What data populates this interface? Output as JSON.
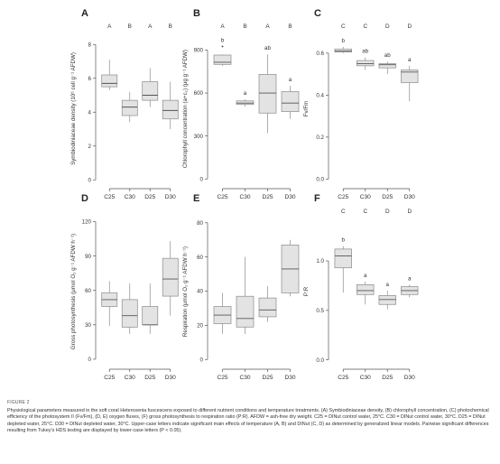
{
  "chart_data": [
    {
      "panel": "A",
      "type": "box",
      "ylabel": "Symbiodiniaceae density (10⁶ cell g⁻¹ AFDW)",
      "ylim": [
        -0.2,
        8.6
      ],
      "yticks": [
        0,
        2,
        4,
        6,
        8
      ],
      "categories": [
        "C25",
        "C30",
        "D25",
        "D30"
      ],
      "letters_upper": [
        "A",
        "B",
        "A",
        "B"
      ],
      "letters_lower": [
        "",
        "",
        "",
        ""
      ],
      "boxes": [
        {
          "min": 5.3,
          "q1": 5.5,
          "median": 5.7,
          "q3": 6.2,
          "max": 7.1
        },
        {
          "min": 3.4,
          "q1": 3.8,
          "median": 4.3,
          "q3": 4.7,
          "max": 5.2
        },
        {
          "min": 4.3,
          "q1": 4.7,
          "median": 5.0,
          "q3": 5.8,
          "max": 6.6
        },
        {
          "min": 3.0,
          "q1": 3.6,
          "median": 4.1,
          "q3": 4.7,
          "max": 5.8
        }
      ],
      "outliers": [
        [],
        [],
        [],
        []
      ]
    },
    {
      "panel": "B",
      "type": "box",
      "ylabel": "Chlorophyll concentration (a+c₂) (μg g⁻¹ AFDW)",
      "ylim": [
        -30,
        1010
      ],
      "yticks": [
        0,
        300,
        600,
        900
      ],
      "categories": [
        "C25",
        "C30",
        "D25",
        "D30"
      ],
      "letters_upper": [
        "A",
        "B",
        "A",
        "B"
      ],
      "letters_lower": [
        "b",
        "a",
        "ab",
        "a"
      ],
      "boxes": [
        {
          "min": 790,
          "q1": 800,
          "median": 815,
          "q3": 865,
          "max": 870
        },
        {
          "min": 505,
          "q1": 520,
          "median": 530,
          "q3": 545,
          "max": 555
        },
        {
          "min": 320,
          "q1": 460,
          "median": 600,
          "q3": 730,
          "max": 870
        },
        {
          "min": 420,
          "q1": 470,
          "median": 530,
          "q3": 610,
          "max": 650
        }
      ],
      "outliers": [
        [
          925
        ],
        [],
        [],
        []
      ]
    },
    {
      "panel": "C",
      "type": "box",
      "ylabel": "Fv/Fm",
      "ylim": [
        -0.02,
        0.69
      ],
      "yticks": [
        0.0,
        0.2,
        0.4,
        0.6
      ],
      "ytick_labels": [
        "0.0",
        "0.2",
        "0.4",
        "0.6"
      ],
      "categories": [
        "C25",
        "C30",
        "D25",
        "D30"
      ],
      "letters_upper": [
        "C",
        "C",
        "D",
        "D"
      ],
      "letters_lower": [
        "b",
        "ab",
        "ab",
        "a"
      ],
      "boxes": [
        {
          "min": 0.6,
          "q1": 0.605,
          "median": 0.61,
          "q3": 0.62,
          "max": 0.63
        },
        {
          "min": 0.52,
          "q1": 0.54,
          "median": 0.55,
          "q3": 0.565,
          "max": 0.58
        },
        {
          "min": 0.5,
          "q1": 0.53,
          "median": 0.545,
          "q3": 0.55,
          "max": 0.56
        },
        {
          "min": 0.37,
          "q1": 0.46,
          "median": 0.51,
          "q3": 0.52,
          "max": 0.54
        }
      ],
      "outliers": [
        [],
        [],
        [],
        []
      ]
    },
    {
      "panel": "D",
      "type": "box",
      "ylabel": "Gross photosynthesis (μmol O₂ g⁻¹ AFDW h⁻¹)",
      "ylim": [
        -4,
        122
      ],
      "yticks": [
        0,
        30,
        60,
        90,
        120
      ],
      "categories": [
        "C25",
        "C30",
        "D25",
        "D30"
      ],
      "letters_upper": [
        "",
        "",
        "",
        ""
      ],
      "letters_lower": [
        "",
        "",
        "",
        ""
      ],
      "boxes": [
        {
          "min": 29,
          "q1": 46,
          "median": 52,
          "q3": 58,
          "max": 68
        },
        {
          "min": 22,
          "q1": 28,
          "median": 38,
          "q3": 52,
          "max": 66
        },
        {
          "min": 22,
          "q1": 30,
          "median": 30,
          "q3": 46,
          "max": 66
        },
        {
          "min": 38,
          "q1": 55,
          "median": 70,
          "q3": 88,
          "max": 103
        }
      ],
      "outliers": [
        [],
        [],
        [],
        []
      ]
    },
    {
      "panel": "E",
      "type": "box",
      "ylabel": "Respiration (μmol O₂ g⁻¹ AFDW h⁻¹)",
      "ylim": [
        -2.5,
        82
      ],
      "yticks": [
        0,
        20,
        40,
        60,
        80
      ],
      "categories": [
        "C25",
        "C30",
        "D25",
        "D30"
      ],
      "letters_upper": [
        "",
        "",
        "",
        ""
      ],
      "letters_lower": [
        "",
        "",
        "",
        ""
      ],
      "boxes": [
        {
          "min": 15,
          "q1": 21,
          "median": 26,
          "q3": 31,
          "max": 39
        },
        {
          "min": 15,
          "q1": 19,
          "median": 24,
          "q3": 37,
          "max": 60
        },
        {
          "min": 22,
          "q1": 25,
          "median": 29,
          "q3": 36,
          "max": 43
        },
        {
          "min": 37,
          "q1": 39,
          "median": 53,
          "q3": 67,
          "max": 70
        }
      ],
      "outliers": [
        [],
        [],
        [],
        []
      ]
    },
    {
      "panel": "F",
      "type": "box",
      "ylabel": "P:R",
      "ylim": [
        -0.04,
        1.42
      ],
      "yticks": [
        0.0,
        0.5,
        1.0
      ],
      "ytick_labels": [
        "0.0",
        "0.5",
        "1.0"
      ],
      "categories": [
        "C25",
        "C30",
        "D25",
        "D30"
      ],
      "letters_upper": [
        "C",
        "C",
        "D",
        "D"
      ],
      "letters_lower": [
        "b",
        "a",
        "a",
        "a"
      ],
      "boxes": [
        {
          "min": 0.68,
          "q1": 0.93,
          "median": 1.05,
          "q3": 1.12,
          "max": 1.15
        },
        {
          "min": 0.56,
          "q1": 0.66,
          "median": 0.7,
          "q3": 0.76,
          "max": 0.79
        },
        {
          "min": 0.51,
          "q1": 0.56,
          "median": 0.61,
          "q3": 0.65,
          "max": 0.7
        },
        {
          "min": 0.63,
          "q1": 0.66,
          "median": 0.7,
          "q3": 0.74,
          "max": 0.76
        }
      ],
      "outliers": [
        [],
        [],
        [],
        []
      ]
    }
  ],
  "colors": {
    "box_fill": "#e3e3e3",
    "box_stroke": "#8a8a8a",
    "axis": "#555555",
    "text": "#333333"
  },
  "caption": {
    "figure_label": "FIGURE 2",
    "text": "Physiological parameters measured in the soft coral Heteroxenia fuscescens exposed to different nutrient conditions and temperature treatments. (A) Symbiodiniaceae density, (B) chlorophyll concentration, (C) photochemical efficiency of the photosystem II (Fv/Fm), (D, E) oxygen fluxes, (F) gross photosynthesis to respiration ratio (P:R). AFDW = ash-free dry weight. C25 = DINut control water, 25°C. C30 = DINut control water, 30°C. D25 = DINut depleted water, 25°C. D30 = DINut depleted water, 30°C. Upper-case letters indicate significant main effects of temperature (A, B) and DINut (C, D) as determined by generalized linear models. Pairwise significant differences resulting from Tukey's HDS testing are displayed by lower-case letters (P < 0.05)."
  }
}
